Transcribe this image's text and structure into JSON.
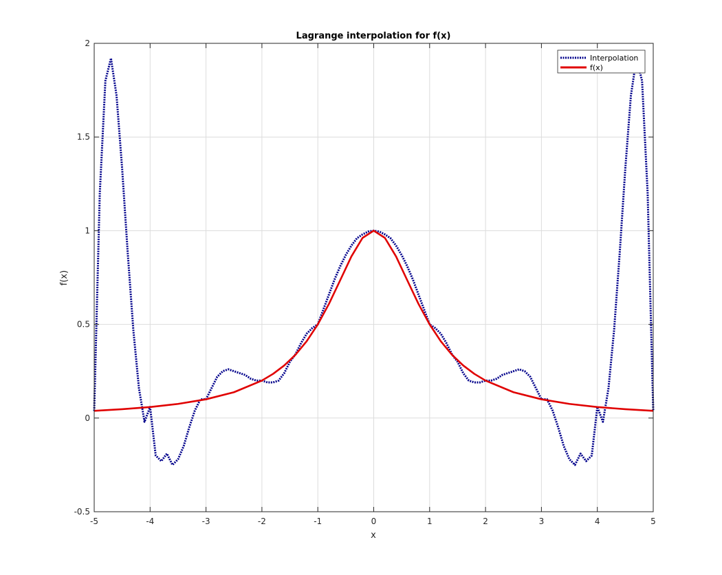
{
  "chart_data": {
    "type": "line",
    "title": "Lagrange interpolation for f(x)",
    "xlabel": "x",
    "ylabel": "f(x)",
    "xlim": [
      -5,
      5
    ],
    "ylim": [
      -0.5,
      2
    ],
    "xticks": [
      -5,
      -4,
      -3,
      -2,
      -1,
      0,
      1,
      2,
      3,
      4,
      5
    ],
    "yticks": [
      -0.5,
      0,
      0.5,
      1,
      1.5,
      2
    ],
    "xtick_labels": [
      "-5",
      "-4",
      "-3",
      "-2",
      "-1",
      "0",
      "1",
      "2",
      "3",
      "4",
      "5"
    ],
    "ytick_labels": [
      "-0.5",
      "0",
      "0.5",
      "1",
      "1.5",
      "2"
    ],
    "grid": true,
    "legend_position": "top-right",
    "series": [
      {
        "name": "Interpolation",
        "color": "#00008B",
        "style": "dotted",
        "x": [
          -5.0,
          -4.9,
          -4.8,
          -4.7,
          -4.6,
          -4.5,
          -4.4,
          -4.3,
          -4.2,
          -4.1,
          -4.0,
          -3.9,
          -3.8,
          -3.7,
          -3.6,
          -3.5,
          -3.4,
          -3.3,
          -3.2,
          -3.1,
          -3.0,
          -2.9,
          -2.8,
          -2.7,
          -2.6,
          -2.5,
          -2.4,
          -2.3,
          -2.2,
          -2.1,
          -2.0,
          -1.9,
          -1.8,
          -1.7,
          -1.6,
          -1.5,
          -1.4,
          -1.3,
          -1.2,
          -1.1,
          -1.0,
          -0.9,
          -0.8,
          -0.7,
          -0.6,
          -0.5,
          -0.4,
          -0.3,
          -0.2,
          -0.1,
          0.0,
          0.1,
          0.2,
          0.3,
          0.4,
          0.5,
          0.6,
          0.7,
          0.8,
          0.9,
          1.0,
          1.1,
          1.2,
          1.3,
          1.4,
          1.5,
          1.6,
          1.7,
          1.8,
          1.9,
          2.0,
          2.1,
          2.2,
          2.3,
          2.4,
          2.5,
          2.6,
          2.7,
          2.8,
          2.9,
          3.0,
          3.1,
          3.2,
          3.3,
          3.4,
          3.5,
          3.6,
          3.7,
          3.8,
          3.9,
          4.0,
          4.1,
          4.2,
          4.3,
          4.4,
          4.5,
          4.6,
          4.7,
          4.8,
          4.9,
          5.0
        ],
        "y": [
          0.038,
          1.2,
          1.8,
          1.92,
          1.72,
          1.33,
          0.88,
          0.47,
          0.16,
          -0.02,
          0.059,
          -0.2,
          -0.23,
          -0.19,
          -0.25,
          -0.22,
          -0.15,
          -0.05,
          0.04,
          0.1,
          0.1,
          0.16,
          0.22,
          0.25,
          0.26,
          0.25,
          0.24,
          0.23,
          0.21,
          0.2,
          0.2,
          0.19,
          0.19,
          0.2,
          0.24,
          0.3,
          0.34,
          0.4,
          0.45,
          0.48,
          0.5,
          0.58,
          0.66,
          0.74,
          0.81,
          0.87,
          0.92,
          0.96,
          0.98,
          0.995,
          1.0,
          0.995,
          0.98,
          0.96,
          0.92,
          0.87,
          0.81,
          0.74,
          0.66,
          0.58,
          0.5,
          0.48,
          0.45,
          0.4,
          0.34,
          0.3,
          0.24,
          0.2,
          0.19,
          0.19,
          0.2,
          0.2,
          0.21,
          0.23,
          0.24,
          0.25,
          0.26,
          0.25,
          0.22,
          0.16,
          0.1,
          0.1,
          0.04,
          -0.05,
          -0.15,
          -0.22,
          -0.25,
          -0.19,
          -0.23,
          -0.2,
          0.059,
          -0.02,
          0.16,
          0.47,
          0.88,
          1.33,
          1.72,
          1.92,
          1.8,
          1.2,
          0.038
        ]
      },
      {
        "name": "f(x)",
        "color": "#E00000",
        "style": "solid",
        "x": [
          -5.0,
          -4.5,
          -4.0,
          -3.5,
          -3.0,
          -2.5,
          -2.0,
          -1.8,
          -1.6,
          -1.4,
          -1.2,
          -1.0,
          -0.8,
          -0.6,
          -0.4,
          -0.2,
          0.0,
          0.2,
          0.4,
          0.6,
          0.8,
          1.0,
          1.2,
          1.4,
          1.6,
          1.8,
          2.0,
          2.5,
          3.0,
          3.5,
          4.0,
          4.5,
          5.0
        ],
        "y": [
          0.0385,
          0.0471,
          0.0588,
          0.0755,
          0.1,
          0.1379,
          0.2,
          0.2358,
          0.2809,
          0.3378,
          0.4098,
          0.5,
          0.6098,
          0.7353,
          0.8621,
          0.9615,
          1.0,
          0.9615,
          0.8621,
          0.7353,
          0.6098,
          0.5,
          0.4098,
          0.3378,
          0.2809,
          0.2358,
          0.2,
          0.1379,
          0.1,
          0.0755,
          0.0588,
          0.0471,
          0.0385
        ]
      }
    ]
  }
}
